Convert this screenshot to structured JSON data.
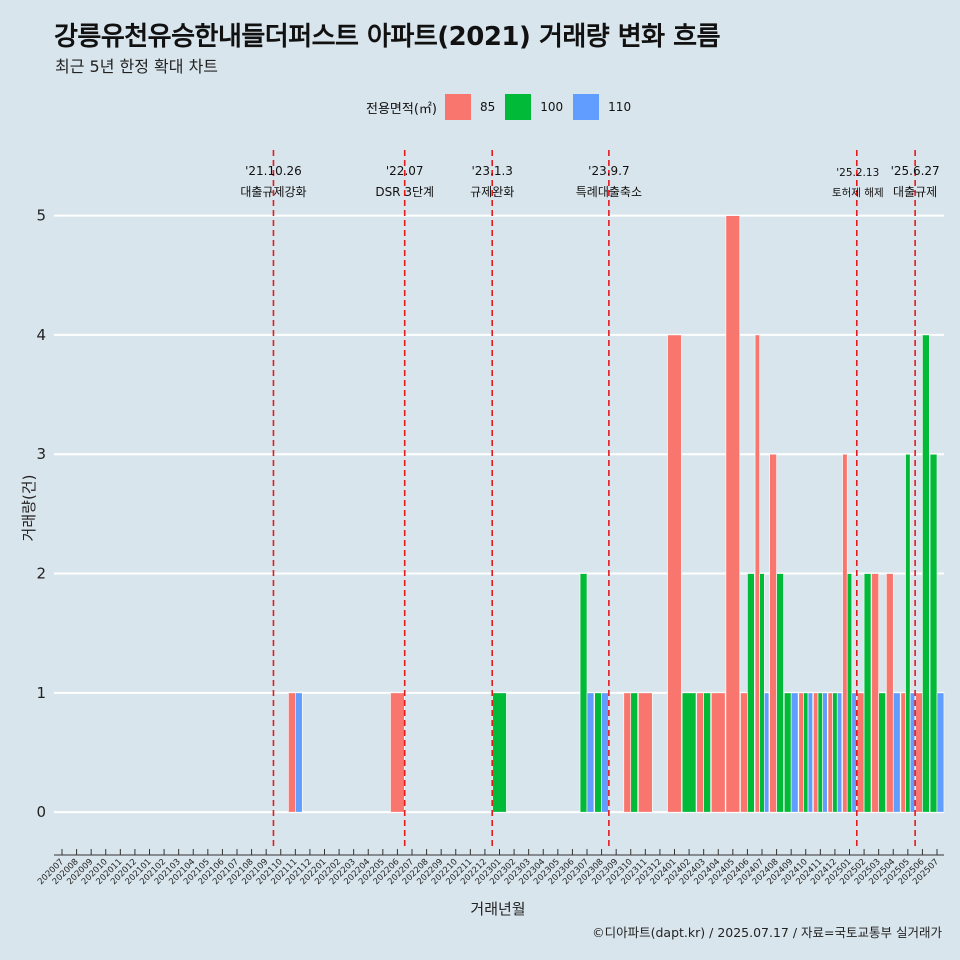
{
  "header": {
    "title": "강릉유천유승한내들더퍼스트 아파트(2021) 거래량 변화 흐름",
    "subtitle": "최근 5년 한정 확대 차트"
  },
  "legend": {
    "title": "전용면적(㎡)",
    "items": [
      {
        "label": "85",
        "color": "#f8766d"
      },
      {
        "label": "100",
        "color": "#00ba38"
      },
      {
        "label": "110",
        "color": "#619cff"
      }
    ]
  },
  "caption": "©디아파트(dapt.kr) / 2025.07.17 / 자료=국토교통부 실거래가",
  "chart_data": {
    "type": "bar",
    "title": "강릉유천유승한내들더퍼스트 아파트(2021) 거래량 변화 흐름",
    "subtitle": "최근 5년 한정 확대 차트",
    "xlabel": "거래년월",
    "ylabel": "거래량(건)",
    "ylim": [
      -0.25,
      5.55
    ],
    "yticks": [
      0,
      1,
      2,
      3,
      4,
      5
    ],
    "grid": "horizontal",
    "legend_position": "top",
    "categories": [
      "202007",
      "202008",
      "202009",
      "202010",
      "202011",
      "202012",
      "202101",
      "202102",
      "202103",
      "202104",
      "202105",
      "202106",
      "202107",
      "202108",
      "202109",
      "202110",
      "202111",
      "202112",
      "202201",
      "202202",
      "202203",
      "202204",
      "202205",
      "202206",
      "202207",
      "202208",
      "202209",
      "202210",
      "202211",
      "202212",
      "202301",
      "202302",
      "202303",
      "202304",
      "202305",
      "202306",
      "202307",
      "202308",
      "202309",
      "202310",
      "202311",
      "202312",
      "202401",
      "202402",
      "202403",
      "202404",
      "202405",
      "202406",
      "202407",
      "202408",
      "202409",
      "202410",
      "202411",
      "202412",
      "202501",
      "202502",
      "202503",
      "202504",
      "202505",
      "202506",
      "202507"
    ],
    "series": [
      {
        "name": "85",
        "color": "#f8766d",
        "values": [
          0,
          0,
          0,
          0,
          0,
          0,
          0,
          0,
          0,
          0,
          0,
          0,
          0,
          0,
          0,
          0,
          1,
          0,
          0,
          0,
          0,
          0,
          0,
          1,
          0,
          0,
          0,
          0,
          0,
          0,
          0,
          0,
          0,
          0,
          0,
          0,
          0,
          0,
          0,
          1,
          1,
          0,
          4,
          0,
          1,
          1,
          5,
          1,
          4,
          3,
          0,
          1,
          1,
          1,
          3,
          1,
          2,
          2,
          1,
          1,
          0
        ]
      },
      {
        "name": "100",
        "color": "#00ba38",
        "values": [
          0,
          0,
          0,
          0,
          0,
          0,
          0,
          0,
          0,
          0,
          0,
          0,
          0,
          0,
          0,
          0,
          0,
          0,
          0,
          0,
          0,
          0,
          0,
          0,
          0,
          0,
          0,
          0,
          0,
          0,
          1,
          0,
          0,
          0,
          0,
          0,
          2,
          1,
          0,
          1,
          0,
          0,
          0,
          1,
          1,
          0,
          0,
          2,
          2,
          2,
          1,
          1,
          1,
          1,
          2,
          2,
          1,
          0,
          3,
          4,
          3
        ]
      },
      {
        "name": "110",
        "color": "#619cff",
        "values": [
          0,
          0,
          0,
          0,
          0,
          0,
          0,
          0,
          0,
          0,
          0,
          0,
          0,
          0,
          0,
          0,
          1,
          0,
          0,
          0,
          0,
          0,
          0,
          0,
          0,
          0,
          0,
          0,
          0,
          0,
          0,
          0,
          0,
          0,
          0,
          0,
          1,
          1,
          0,
          0,
          0,
          0,
          0,
          0,
          0,
          0,
          0,
          0,
          1,
          0,
          1,
          1,
          1,
          1,
          1,
          0,
          0,
          1,
          1,
          0,
          1
        ]
      }
    ],
    "annotations": [
      {
        "x": "202110",
        "date": "'21.10.26",
        "text": "대출규제강화"
      },
      {
        "x": "202207",
        "date": "'22.07",
        "text": "DSR 3단계"
      },
      {
        "x": "202301",
        "date": "'23.1.3",
        "text": "규제완화"
      },
      {
        "x": "202309",
        "date": "'23.9.7",
        "text": "특례대출축소"
      },
      {
        "x": "202502",
        "date": "'25.2.13",
        "text": "토허제 해제"
      },
      {
        "x": "202506",
        "date": "'25.6.27",
        "text": "대출규제"
      }
    ]
  }
}
